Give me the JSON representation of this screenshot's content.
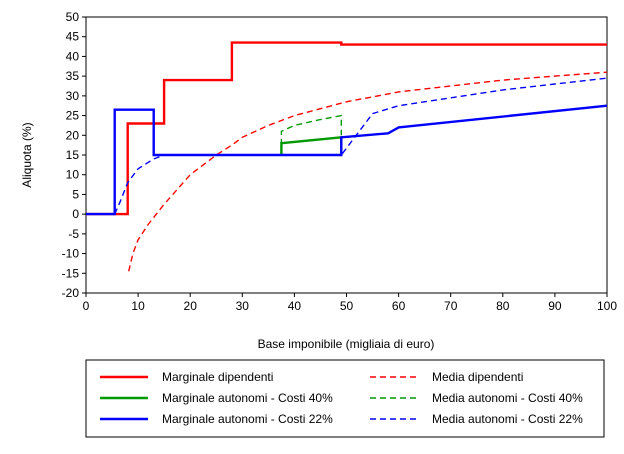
{
  "chart_data": {
    "type": "line",
    "title": "",
    "xlabel": "Base imponibile (migliaia di euro)",
    "ylabel": "Aliquota (%)",
    "xlim": [
      0,
      100
    ],
    "ylim": [
      -20,
      50
    ],
    "xticks": [
      0,
      10,
      20,
      30,
      40,
      50,
      60,
      70,
      80,
      90,
      100
    ],
    "yticks": [
      -20,
      -15,
      -10,
      -5,
      0,
      5,
      10,
      15,
      20,
      25,
      30,
      35,
      40,
      45,
      50
    ],
    "grid": false,
    "legend_position": "bottom",
    "series": [
      {
        "name": "Marginale dipendenti",
        "color": "#ff0000",
        "style": "solid",
        "x": [
          0,
          8,
          8,
          15,
          15,
          28,
          28,
          49,
          49,
          100
        ],
        "y": [
          0,
          0,
          23,
          23,
          34,
          34,
          43.5,
          43.5,
          43,
          43
        ]
      },
      {
        "name": "Media dipendenti",
        "color": "#ff0000",
        "style": "dashed",
        "x": [
          8.2,
          9,
          10,
          12,
          15,
          18,
          20,
          25,
          28,
          30,
          35,
          40,
          50,
          60,
          70,
          80,
          90,
          100
        ],
        "y": [
          -14.5,
          -10,
          -6.5,
          -2.5,
          2.5,
          7,
          10,
          15,
          17.5,
          19.5,
          22.5,
          25,
          28.5,
          31,
          32.5,
          34,
          35,
          36
        ]
      },
      {
        "name": "Marginale autonomi - Costi 40%",
        "color": "#009900",
        "style": "solid",
        "x": [
          37.5,
          37.5,
          49,
          49
        ],
        "y": [
          15,
          18,
          19.5,
          15
        ]
      },
      {
        "name": "Media autonomi - Costi 40%",
        "color": "#009900",
        "style": "dashed",
        "x": [
          37.5,
          37.5,
          40,
          45,
          49,
          49
        ],
        "y": [
          15,
          21,
          22.5,
          24,
          25,
          20
        ]
      },
      {
        "name": "Marginale autonomi - Costi 22%",
        "color": "#0000ff",
        "style": "solid",
        "x": [
          0,
          5.5,
          5.5,
          13,
          13,
          49,
          49,
          58,
          60,
          100
        ],
        "y": [
          0,
          0,
          26.5,
          26.5,
          15,
          15,
          19.5,
          20.5,
          22,
          27.5
        ]
      },
      {
        "name": "Media autonomi - Costi 22%",
        "color": "#0000ff",
        "style": "dashed",
        "x": [
          5.5,
          6.5,
          8,
          10,
          13,
          15,
          20,
          30,
          40,
          49,
          55,
          60,
          70,
          80,
          90,
          100
        ],
        "y": [
          0,
          3,
          8,
          11.5,
          14,
          15,
          15,
          15,
          15,
          15,
          25.5,
          27.5,
          29.5,
          31.5,
          33,
          34.5
        ]
      }
    ]
  }
}
